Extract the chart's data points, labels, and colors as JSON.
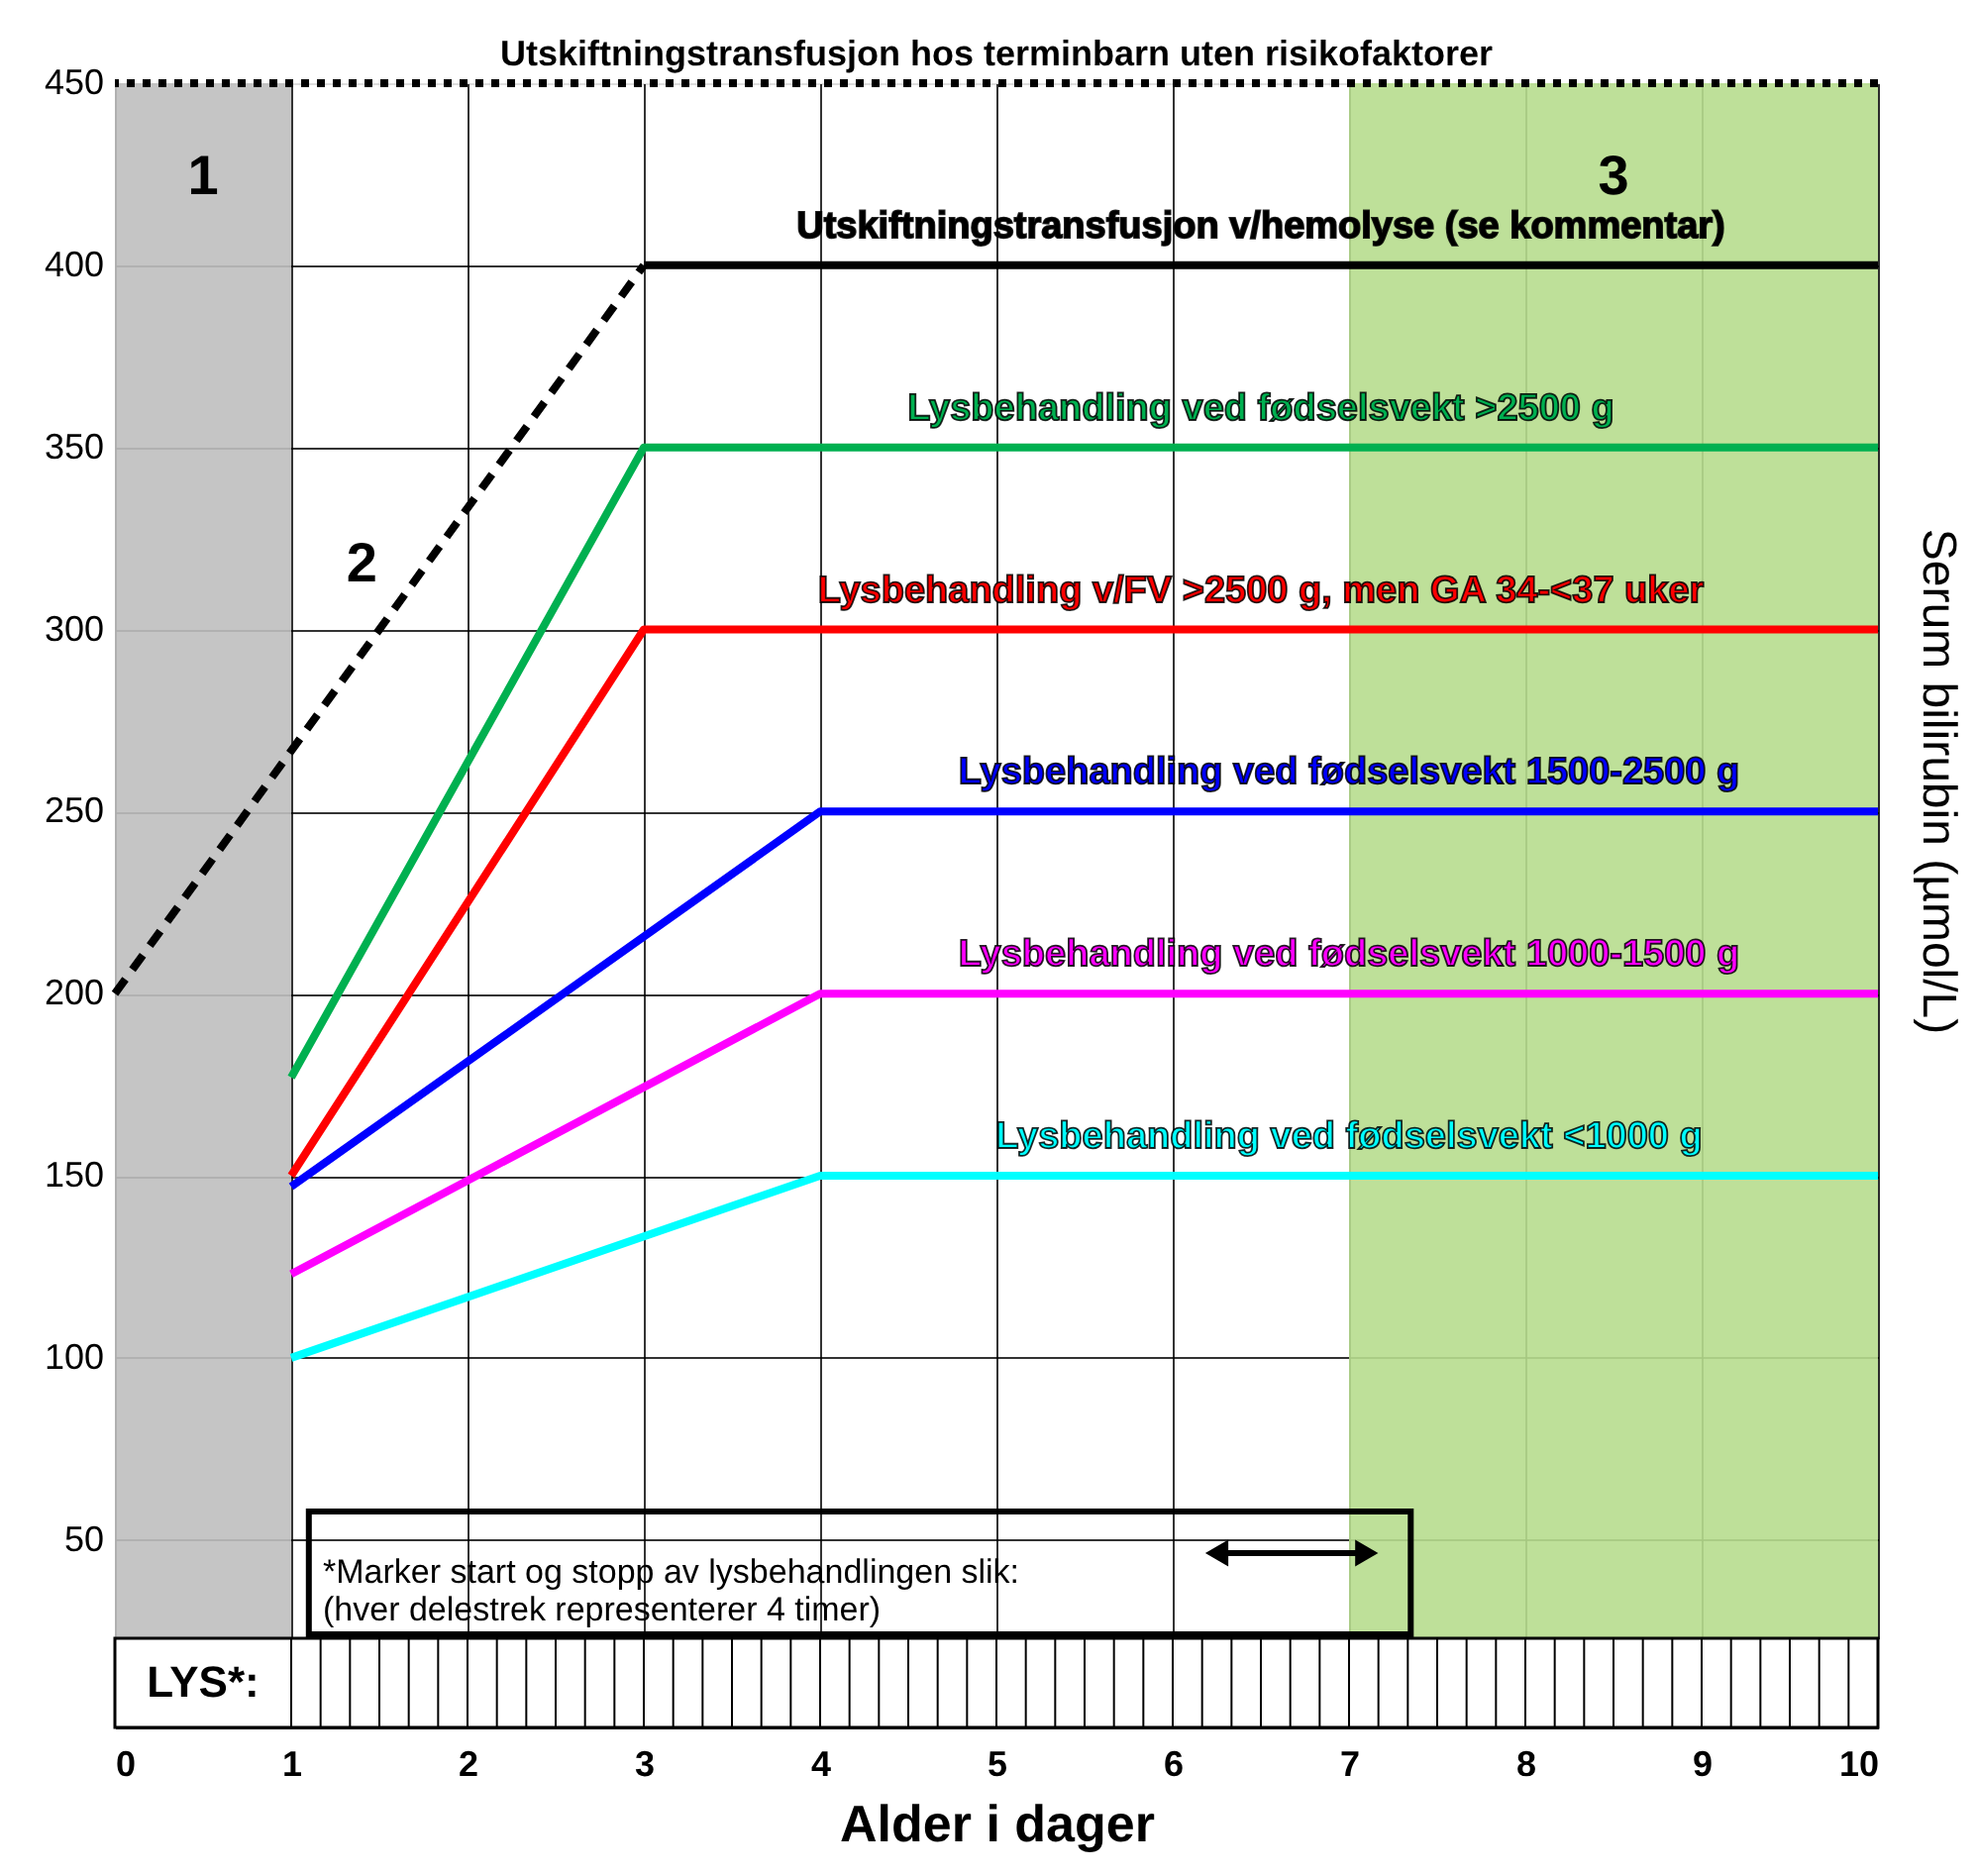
{
  "chart_data": {
    "type": "line",
    "xlabel": "Alder i dager",
    "ylabel": "Serum bilirubin (µmol/L)",
    "xlim": [
      0,
      10
    ],
    "xticks": [
      0,
      1,
      2,
      3,
      4,
      5,
      6,
      7,
      8,
      9,
      10
    ],
    "ylim": [
      23,
      450
    ],
    "yticks": [
      50,
      100,
      150,
      200,
      250,
      300,
      350,
      400,
      450
    ],
    "grid": true,
    "marker": "none",
    "series": [
      {
        "color": "#000000",
        "line_style": "dashed",
        "x": [
          0,
          3
        ],
        "values": [
          200,
          400
        ]
      },
      {
        "name": "Utskiftningstransfusjon v/hemolyse (se kommentar)",
        "color": "#000000",
        "line_style": "solid",
        "x": [
          3,
          10
        ],
        "values": [
          400,
          400
        ]
      },
      {
        "name": "Lysbehandling ved fødselsvekt >2500 g",
        "color": "#00b050",
        "line_style": "solid",
        "x": [
          1,
          3,
          10
        ],
        "values": [
          177,
          350,
          350
        ]
      },
      {
        "name": "Lysbehandling v/FV >2500 g, men GA 34-<37 uker",
        "color": "#ff0000",
        "line_style": "solid",
        "x": [
          1,
          3,
          10
        ],
        "values": [
          150,
          300,
          300
        ]
      },
      {
        "name": "Lysbehandling ved fødselsvekt 1500-2500 g",
        "color": "#0000ff",
        "line_style": "solid",
        "x": [
          1,
          4,
          10
        ],
        "values": [
          147,
          250,
          250
        ]
      },
      {
        "name": "Lysbehandling ved fødselsvekt 1000-1500 g",
        "color": "#ff00ff",
        "line_style": "solid",
        "x": [
          1,
          4,
          10
        ],
        "values": [
          123,
          200,
          200
        ]
      },
      {
        "name": "Lysbehandling ved fødselsvekt <1000 g",
        "color": "#00ffff",
        "line_style": "solid",
        "x": [
          1,
          4,
          10
        ],
        "values": [
          100,
          150,
          150
        ]
      }
    ],
    "ref_lines": [
      {
        "axis": "y",
        "value": 450,
        "label": "Utskiftningstransfusjon hos terminbarn uten risikofaktorer",
        "color": "#000000",
        "line_style": "dotted"
      }
    ],
    "bands": [
      {
        "axis": "x",
        "from": 0,
        "to": 1,
        "label": "1",
        "color": "#bfbfbf"
      },
      {
        "axis": "x",
        "from": 7,
        "to": 10,
        "label": "3",
        "color": "#b7dd8e"
      }
    ],
    "annotations": [
      "2",
      "*Marker start og stopp av lysbehandlingen slik:\n(hver delestrek representerer 4 timer)",
      "LYS*:"
    ]
  }
}
